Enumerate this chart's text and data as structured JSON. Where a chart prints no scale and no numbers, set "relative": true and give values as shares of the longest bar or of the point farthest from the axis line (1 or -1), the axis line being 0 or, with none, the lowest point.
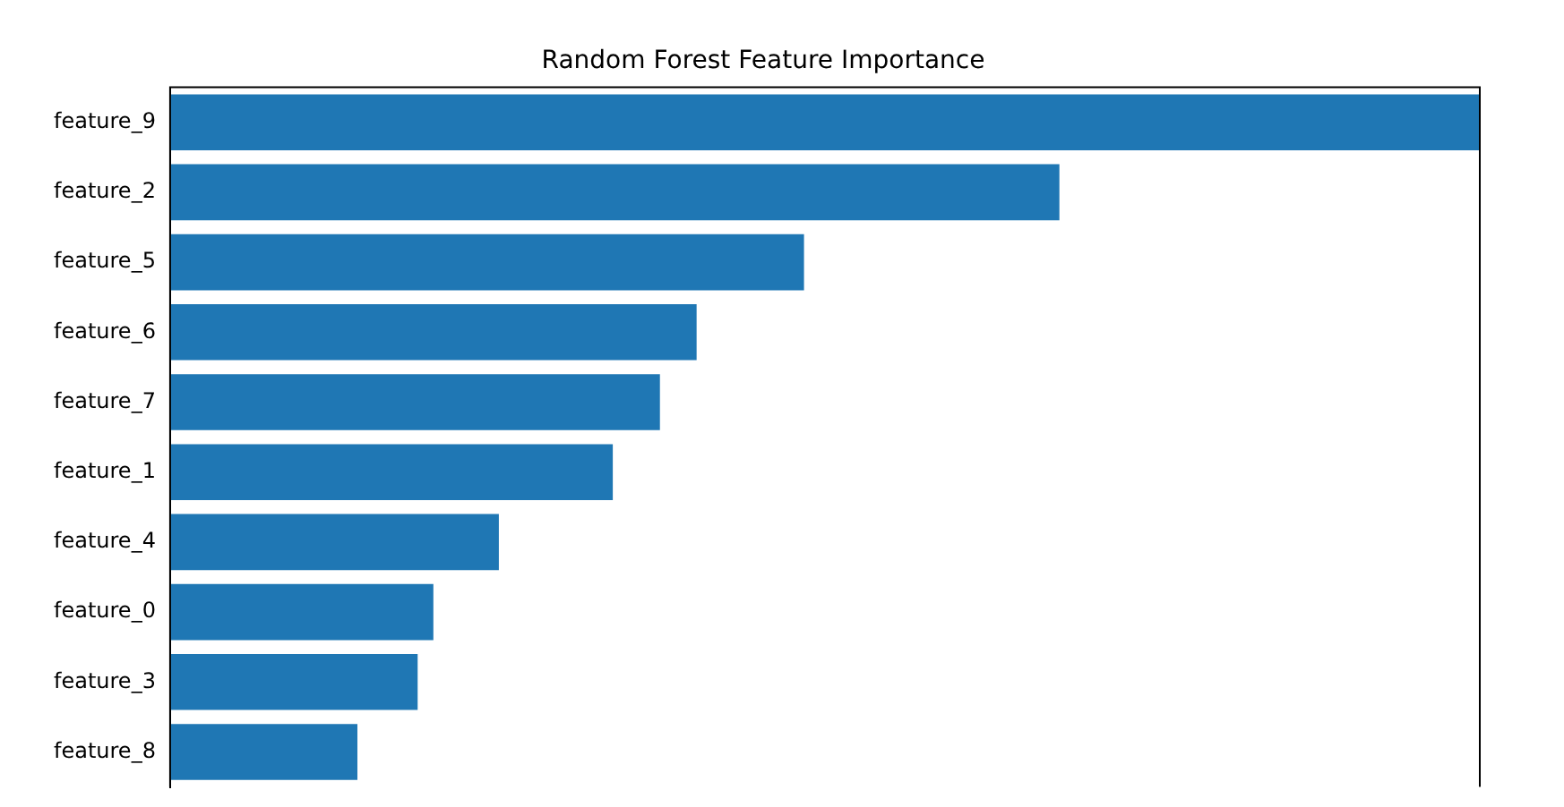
{
  "chart_data": {
    "type": "bar",
    "title": "Random Forest Feature Importance",
    "orientation": "horizontal",
    "relative": true,
    "categories": [
      "feature_9",
      "feature_2",
      "feature_5",
      "feature_6",
      "feature_7",
      "feature_1",
      "feature_4",
      "feature_0",
      "feature_3",
      "feature_8"
    ],
    "values": [
      1,
      0.679,
      0.484,
      0.402,
      0.374,
      0.338,
      0.251,
      0.201,
      0.189,
      0.143
    ],
    "color": "#1f77b4",
    "legend": false
  }
}
